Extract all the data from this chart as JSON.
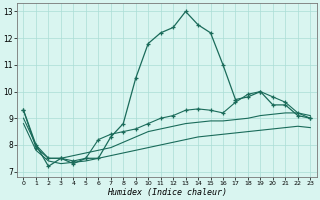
{
  "xlabel": "Humidex (Indice chaleur)",
  "bg_color": "#d9f5f0",
  "grid_color": "#aaddd6",
  "line_color": "#1a6b5a",
  "xlim": [
    -0.5,
    23.5
  ],
  "ylim": [
    6.8,
    13.3
  ],
  "yticks": [
    7,
    8,
    9,
    10,
    11,
    12,
    13
  ],
  "xticks": [
    0,
    1,
    2,
    3,
    4,
    5,
    6,
    7,
    8,
    9,
    10,
    11,
    12,
    13,
    14,
    15,
    16,
    17,
    18,
    19,
    20,
    21,
    22,
    23
  ],
  "s1_x": [
    0,
    1,
    2,
    3,
    4,
    5,
    6,
    7,
    8,
    9,
    10,
    11,
    12,
    13,
    14,
    15,
    16,
    17,
    18,
    19,
    20,
    21,
    22,
    23
  ],
  "s1_y": [
    9.3,
    8.0,
    7.2,
    7.5,
    7.3,
    7.5,
    7.5,
    8.3,
    8.8,
    10.5,
    11.8,
    12.2,
    12.4,
    13.0,
    12.5,
    12.2,
    11.0,
    9.7,
    9.8,
    10.0,
    9.5,
    9.5,
    9.1,
    9.0
  ],
  "s2_x": [
    0,
    1,
    2,
    3,
    4,
    5,
    6,
    7,
    8,
    9,
    10,
    11,
    12,
    13,
    14,
    15,
    16,
    17,
    18,
    19,
    20,
    21,
    22,
    23
  ],
  "s2_y": [
    9.0,
    8.0,
    7.5,
    7.5,
    7.6,
    7.7,
    7.8,
    7.9,
    8.1,
    8.3,
    8.5,
    8.6,
    8.7,
    8.8,
    8.85,
    8.9,
    8.9,
    8.95,
    9.0,
    9.1,
    9.15,
    9.2,
    9.2,
    9.1
  ],
  "s3_x": [
    0,
    1,
    2,
    3,
    4,
    5,
    6,
    7,
    8,
    9,
    10,
    11,
    12,
    13,
    14,
    15,
    16,
    17,
    18,
    19,
    20,
    21,
    22,
    23
  ],
  "s3_y": [
    8.8,
    7.8,
    7.4,
    7.3,
    7.35,
    7.4,
    7.5,
    7.6,
    7.7,
    7.8,
    7.9,
    8.0,
    8.1,
    8.2,
    8.3,
    8.35,
    8.4,
    8.45,
    8.5,
    8.55,
    8.6,
    8.65,
    8.7,
    8.65
  ],
  "s4_x": [
    0,
    1,
    2,
    3,
    4,
    5,
    6,
    7,
    8,
    9,
    10,
    11,
    12,
    13,
    14,
    15,
    16,
    17,
    18,
    19,
    20,
    21,
    22,
    23
  ],
  "s4_y": [
    9.3,
    7.9,
    7.5,
    7.5,
    7.4,
    7.5,
    8.2,
    8.4,
    8.5,
    8.6,
    8.8,
    9.0,
    9.1,
    9.3,
    9.35,
    9.3,
    9.2,
    9.6,
    9.9,
    10.0,
    9.8,
    9.6,
    9.2,
    9.0
  ]
}
